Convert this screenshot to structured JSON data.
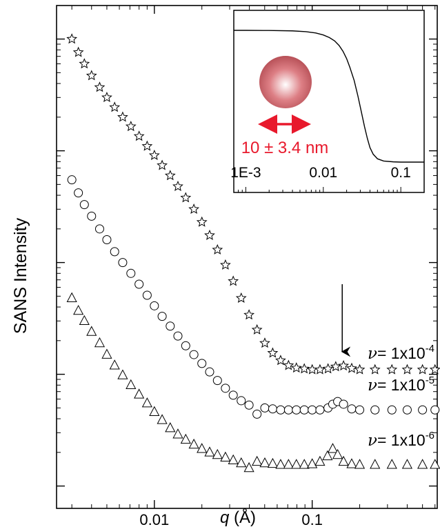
{
  "chart_data": {
    "type": "scatter",
    "xlabel_italic": "q",
    "xlabel_rest": " (Å)",
    "ylabel": "SANS Intensity",
    "xscale": "log",
    "yscale": "log",
    "xlim": [
      0.0024,
      0.62
    ],
    "xticks": [
      {
        "value": 0.01,
        "label": "0.01"
      },
      {
        "value": 0.1,
        "label": "0.1"
      }
    ],
    "grid": false,
    "series": [
      {
        "marker": "star",
        "label_prefix": "ν",
        "label_text": "= 1x10",
        "label_exp": "-4",
        "points": [
          [
            0.003,
            1000
          ],
          [
            0.0033,
            760
          ],
          [
            0.0036,
            600
          ],
          [
            0.004,
            470
          ],
          [
            0.0045,
            370
          ],
          [
            0.005,
            300
          ],
          [
            0.0056,
            245
          ],
          [
            0.0063,
            200
          ],
          [
            0.0071,
            165
          ],
          [
            0.008,
            135
          ],
          [
            0.009,
            110
          ],
          [
            0.01,
            91
          ],
          [
            0.0112,
            74
          ],
          [
            0.0126,
            60
          ],
          [
            0.0141,
            48
          ],
          [
            0.0158,
            38
          ],
          [
            0.0178,
            30
          ],
          [
            0.02,
            23
          ],
          [
            0.0224,
            17.5
          ],
          [
            0.0251,
            13
          ],
          [
            0.0282,
            9.5
          ],
          [
            0.0316,
            6.8
          ],
          [
            0.0355,
            4.8
          ],
          [
            0.0398,
            3.4
          ],
          [
            0.0447,
            2.5
          ],
          [
            0.0501,
            1.9
          ],
          [
            0.0562,
            1.55
          ],
          [
            0.0631,
            1.33
          ],
          [
            0.0708,
            1.2
          ],
          [
            0.0794,
            1.14
          ],
          [
            0.0891,
            1.12
          ],
          [
            0.1,
            1.1
          ],
          [
            0.112,
            1.1
          ],
          [
            0.126,
            1.12
          ],
          [
            0.141,
            1.17
          ],
          [
            0.158,
            1.19
          ],
          [
            0.178,
            1.13
          ],
          [
            0.2,
            1.1
          ],
          [
            0.25,
            1.1
          ],
          [
            0.32,
            1.1
          ],
          [
            0.4,
            1.1
          ],
          [
            0.5,
            1.1
          ],
          [
            0.6,
            1.1
          ]
        ]
      },
      {
        "marker": "circle",
        "label_prefix": "ν",
        "label_text": "= 1x10",
        "label_exp": "-5",
        "points": [
          [
            0.003,
            55
          ],
          [
            0.0033,
            42
          ],
          [
            0.0036,
            33
          ],
          [
            0.004,
            26
          ],
          [
            0.0045,
            20
          ],
          [
            0.005,
            16
          ],
          [
            0.0056,
            12.5
          ],
          [
            0.0063,
            10
          ],
          [
            0.0071,
            8
          ],
          [
            0.008,
            6.4
          ],
          [
            0.009,
            5.1
          ],
          [
            0.01,
            4.1
          ],
          [
            0.0112,
            3.3
          ],
          [
            0.0126,
            2.7
          ],
          [
            0.0141,
            2.2
          ],
          [
            0.0158,
            1.8
          ],
          [
            0.0178,
            1.5
          ],
          [
            0.02,
            1.25
          ],
          [
            0.0224,
            1.05
          ],
          [
            0.0251,
            0.88
          ],
          [
            0.0282,
            0.75
          ],
          [
            0.0316,
            0.65
          ],
          [
            0.0355,
            0.58
          ],
          [
            0.0398,
            0.53
          ],
          [
            0.0447,
            0.44
          ],
          [
            0.0501,
            0.5
          ],
          [
            0.0562,
            0.49
          ],
          [
            0.0631,
            0.48
          ],
          [
            0.0708,
            0.48
          ],
          [
            0.0794,
            0.48
          ],
          [
            0.0891,
            0.48
          ],
          [
            0.1,
            0.48
          ],
          [
            0.112,
            0.48
          ],
          [
            0.126,
            0.5
          ],
          [
            0.135,
            0.54
          ],
          [
            0.145,
            0.57
          ],
          [
            0.158,
            0.54
          ],
          [
            0.178,
            0.49
          ],
          [
            0.2,
            0.48
          ],
          [
            0.25,
            0.48
          ],
          [
            0.32,
            0.48
          ],
          [
            0.4,
            0.48
          ],
          [
            0.5,
            0.48
          ],
          [
            0.6,
            0.48
          ]
        ]
      },
      {
        "marker": "triangle",
        "label_prefix": "ν",
        "label_text": "= 1x10",
        "label_exp": "-6",
        "points": [
          [
            0.003,
            4.8
          ],
          [
            0.0033,
            3.7
          ],
          [
            0.0036,
            3.0
          ],
          [
            0.004,
            2.4
          ],
          [
            0.0045,
            1.9
          ],
          [
            0.005,
            1.5
          ],
          [
            0.0056,
            1.2
          ],
          [
            0.0063,
            0.98
          ],
          [
            0.0071,
            0.8
          ],
          [
            0.008,
            0.66
          ],
          [
            0.009,
            0.55
          ],
          [
            0.01,
            0.46
          ],
          [
            0.0112,
            0.39
          ],
          [
            0.0126,
            0.33
          ],
          [
            0.0141,
            0.29
          ],
          [
            0.0158,
            0.26
          ],
          [
            0.0178,
            0.235
          ],
          [
            0.02,
            0.215
          ],
          [
            0.0224,
            0.2
          ],
          [
            0.0251,
            0.19
          ],
          [
            0.0282,
            0.18
          ],
          [
            0.0316,
            0.17
          ],
          [
            0.0355,
            0.16
          ],
          [
            0.0398,
            0.145
          ],
          [
            0.0447,
            0.165
          ],
          [
            0.0501,
            0.16
          ],
          [
            0.0562,
            0.158
          ],
          [
            0.0631,
            0.155
          ],
          [
            0.0708,
            0.155
          ],
          [
            0.0794,
            0.155
          ],
          [
            0.0891,
            0.155
          ],
          [
            0.1,
            0.157
          ],
          [
            0.112,
            0.165
          ],
          [
            0.125,
            0.185
          ],
          [
            0.135,
            0.215
          ],
          [
            0.145,
            0.19
          ],
          [
            0.158,
            0.165
          ],
          [
            0.178,
            0.157
          ],
          [
            0.2,
            0.155
          ],
          [
            0.25,
            0.155
          ],
          [
            0.32,
            0.155
          ],
          [
            0.4,
            0.155
          ],
          [
            0.5,
            0.155
          ],
          [
            0.6,
            0.155
          ]
        ]
      }
    ],
    "arrow_annotation": {
      "q": 0.155,
      "points_to_series": 0
    },
    "inset": {
      "xscale": "log",
      "xlim": [
        0.0007,
        0.2
      ],
      "xticks": [
        {
          "value": 0.001,
          "label": "1E-3"
        },
        {
          "value": 0.01,
          "label": "0.01"
        },
        {
          "value": 0.1,
          "label": "0.1"
        }
      ],
      "curve": [
        [
          0.0007,
          1.0
        ],
        [
          0.001,
          1.0
        ],
        [
          0.002,
          0.999
        ],
        [
          0.004,
          0.996
        ],
        [
          0.006,
          0.99
        ],
        [
          0.008,
          0.98
        ],
        [
          0.01,
          0.965
        ],
        [
          0.012,
          0.945
        ],
        [
          0.014,
          0.92
        ],
        [
          0.016,
          0.885
        ],
        [
          0.018,
          0.84
        ],
        [
          0.02,
          0.785
        ],
        [
          0.022,
          0.72
        ],
        [
          0.025,
          0.62
        ],
        [
          0.028,
          0.5
        ],
        [
          0.031,
          0.38
        ],
        [
          0.034,
          0.27
        ],
        [
          0.037,
          0.18
        ],
        [
          0.04,
          0.11
        ],
        [
          0.044,
          0.06
        ],
        [
          0.05,
          0.025
        ],
        [
          0.06,
          0.008
        ],
        [
          0.08,
          0.002
        ],
        [
          0.1,
          0.0
        ],
        [
          0.2,
          0.0
        ]
      ],
      "size_label": "10 ± 3.4 nm",
      "accent_color": "#e8192c"
    }
  }
}
